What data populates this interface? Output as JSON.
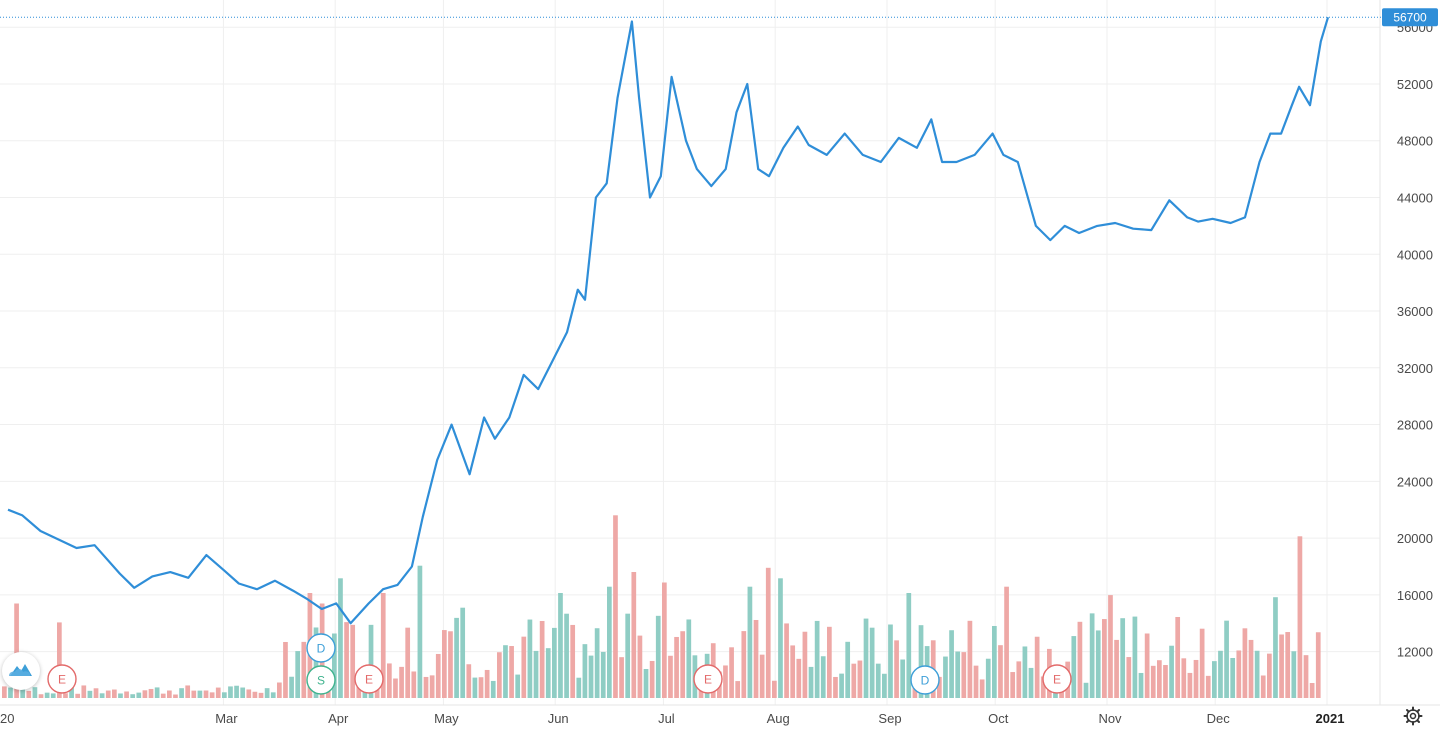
{
  "chart_data": {
    "type": "line",
    "price_series": {
      "x": [
        "2020-01-01",
        "2020-01-05",
        "2020-01-10",
        "2020-01-15",
        "2020-01-20",
        "2020-01-25",
        "2020-02-01",
        "2020-02-05",
        "2020-02-10",
        "2020-02-15",
        "2020-02-20",
        "2020-02-25",
        "2020-03-01",
        "2020-03-05",
        "2020-03-10",
        "2020-03-15",
        "2020-03-20",
        "2020-03-24",
        "2020-03-28",
        "2020-04-01",
        "2020-04-05",
        "2020-04-10",
        "2020-04-14",
        "2020-04-18",
        "2020-04-22",
        "2020-04-25",
        "2020-04-29",
        "2020-05-03",
        "2020-05-08",
        "2020-05-12",
        "2020-05-15",
        "2020-05-19",
        "2020-05-23",
        "2020-05-27",
        "2020-05-31",
        "2020-06-04",
        "2020-06-07",
        "2020-06-09",
        "2020-06-12",
        "2020-06-15",
        "2020-06-18",
        "2020-06-22",
        "2020-06-24",
        "2020-06-27",
        "2020-06-30",
        "2020-07-03",
        "2020-07-07",
        "2020-07-10",
        "2020-07-14",
        "2020-07-18",
        "2020-07-21",
        "2020-07-24",
        "2020-07-27",
        "2020-07-30",
        "2020-08-03",
        "2020-08-07",
        "2020-08-10",
        "2020-08-15",
        "2020-08-20",
        "2020-08-25",
        "2020-08-30",
        "2020-09-04",
        "2020-09-09",
        "2020-09-13",
        "2020-09-16",
        "2020-09-20",
        "2020-09-25",
        "2020-09-30",
        "2020-10-03",
        "2020-10-07",
        "2020-10-12",
        "2020-10-16",
        "2020-10-20",
        "2020-10-24",
        "2020-10-29",
        "2020-11-03",
        "2020-11-08",
        "2020-11-13",
        "2020-11-18",
        "2020-11-23",
        "2020-11-26",
        "2020-11-30",
        "2020-12-05",
        "2020-12-09",
        "2020-12-13",
        "2020-12-16",
        "2020-12-19",
        "2020-12-22",
        "2020-12-24",
        "2020-12-27",
        "2020-12-30",
        "2021-01-01"
      ],
      "y": [
        22000,
        21600,
        20500,
        19900,
        19300,
        19500,
        17500,
        16500,
        17300,
        17600,
        17200,
        18800,
        17700,
        16800,
        16400,
        17000,
        16300,
        15700,
        15000,
        15400,
        14000,
        15400,
        16400,
        16700,
        18000,
        21500,
        25500,
        28000,
        24500,
        28500,
        27000,
        28500,
        31500,
        30500,
        32500,
        34500,
        37500,
        36800,
        44000,
        45000,
        51000,
        56400,
        51000,
        44000,
        45500,
        52500,
        48000,
        46000,
        44800,
        46000,
        50000,
        52000,
        46000,
        45500,
        47500,
        49000,
        47700,
        47000,
        48500,
        47000,
        46500,
        48200,
        47500,
        49500,
        46500,
        46500,
        47000,
        48500,
        47000,
        46500,
        42000,
        41000,
        42000,
        41500,
        42000,
        42200,
        41800,
        41700,
        43800,
        42600,
        42300,
        42500,
        42200,
        42600,
        46500,
        48500,
        48500,
        50500,
        51800,
        50500,
        55000,
        56700
      ]
    },
    "volume_series": {
      "bar_count": 216,
      "color_up": "#8fcdc4",
      "color_down": "#eea8a6"
    },
    "y_ticks": [
      12000,
      16000,
      20000,
      24000,
      28000,
      32000,
      36000,
      40000,
      44000,
      48000,
      52000,
      56000
    ],
    "ylim": [
      10000,
      57000
    ],
    "x_tick_labels": [
      "20",
      "Mar",
      "Apr",
      "May",
      "Jun",
      "Jul",
      "Aug",
      "Sep",
      "Oct",
      "Nov",
      "Dec",
      "2021"
    ],
    "last_price": "56700",
    "grid": true,
    "line_color": "#2f8ed8",
    "event_markers": [
      {
        "letter": "E",
        "kind": "earnings",
        "color": "#e36a6a"
      },
      {
        "letter": "D",
        "kind": "dividend",
        "color": "#3d9fd8"
      },
      {
        "letter": "S",
        "kind": "split",
        "color": "#3fb38e"
      },
      {
        "letter": "E",
        "kind": "earnings",
        "color": "#e36a6a"
      },
      {
        "letter": "E",
        "kind": "earnings",
        "color": "#e36a6a"
      },
      {
        "letter": "D",
        "kind": "dividend",
        "color": "#3d9fd8"
      },
      {
        "letter": "E",
        "kind": "earnings",
        "color": "#e36a6a"
      }
    ]
  },
  "icons": {
    "logo": "mountain-cloud-icon",
    "settings": "gear-icon"
  }
}
